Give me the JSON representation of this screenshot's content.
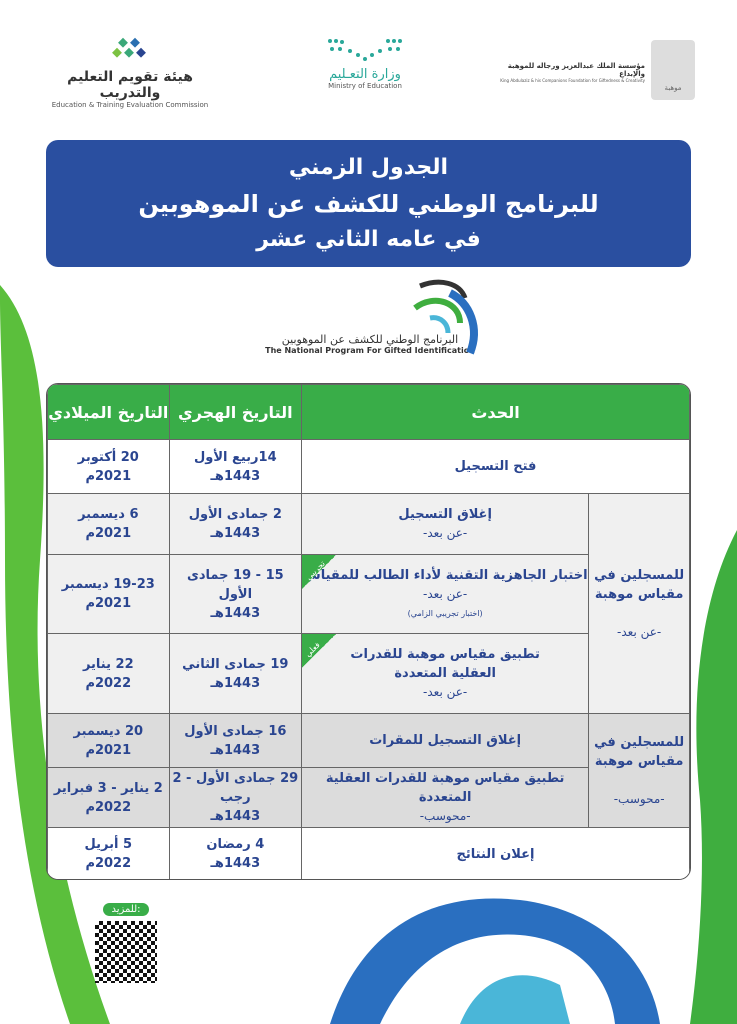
{
  "logos": {
    "etec": {
      "ar": "هيئة تقويم التعليم والتدريب",
      "en": "Education & Training Evaluation Commission"
    },
    "moe": {
      "ar": "وزارة التعـليم",
      "en": "Ministry of Education"
    },
    "mawhiba": {
      "ar": "مؤسسة الملك عبدالعزيز ورجاله للموهبة والإبداع",
      "en": "King Abdulaziz & his Companions Foundation for Giftedness & Creativity",
      "badge": "موهبة"
    }
  },
  "title": {
    "line1": "الجدول الزمني",
    "line2": "للبرنامج الوطني للكشف عن الموهوبين",
    "line3": "في عامه الثاني عشر"
  },
  "program": {
    "ar": "البرنامج الوطني للكشف عن الموهوبين",
    "en": "The National Program For Gifted Identification"
  },
  "table": {
    "headers": {
      "event": "الحدث",
      "hijri": "التاريخ الهجري",
      "gregorian": "التاريخ الميلادي"
    },
    "groups": [
      {
        "line1": "للمسجلين في",
        "line2": "مقياس موهبة",
        "mode": "-عن بعد-"
      },
      {
        "line1": "للمسجلين في",
        "line2": "مقياس موهبة",
        "mode": "-محوسب-"
      }
    ],
    "rows": [
      {
        "event": "فتح التسجيل",
        "hijri": "14ربيع الأول",
        "hijri_year": "1443هـ",
        "greg": "20 أكتوبر",
        "greg_year": "2021م"
      },
      {
        "event": "إغلاق التسجيل",
        "sub": "-عن بعد-",
        "hijri": "2 جمادى الأول",
        "hijri_year": "1443هـ",
        "greg": "6 ديسمبر",
        "greg_year": "2021م"
      },
      {
        "event": "اختبار الجاهزية التقنية لأداء الطالب للمقياس",
        "sub": "-عن بعد-",
        "note": "(اختبار تجريبي الزامي)",
        "ribbon": "تجريبي",
        "hijri": "15 - 19 جمادى الأول",
        "hijri_year": "1443هـ",
        "greg": "19-23 ديسمبر",
        "greg_year": "2021م"
      },
      {
        "event": "تطبيق مقياس موهبة للقدرات",
        "event2": "العقلية المتعددة",
        "sub": "-عن بعد-",
        "ribbon": "فعلي",
        "hijri": "19 جمادى الثاني",
        "hijri_year": "1443هـ",
        "greg": "22 يناير",
        "greg_year": "2022م"
      },
      {
        "event": "إغلاق التسجيل للمقرات",
        "hijri": "16 جمادى الأول",
        "hijri_year": "1443هـ",
        "greg": "20 ديسمبر",
        "greg_year": "2021م"
      },
      {
        "event": "تطبيق مقياس موهبة للقدرات العقلية المتعددة",
        "sub": "-محوسب-",
        "hijri": "29 جمادى الأول - 2 رجب",
        "hijri_year": "1443هـ",
        "greg": "2 يناير - 3 فبراير",
        "greg_year": "2022م"
      },
      {
        "event": "إعلان النتائج",
        "hijri": "4 رمضان",
        "hijri_year": "1443هـ",
        "greg": "5 أبريل",
        "greg_year": "2022م"
      }
    ]
  },
  "more": {
    "label": "للمزيد:"
  },
  "colors": {
    "blue": "#2a4fa0",
    "green": "#39ad48",
    "text": "#2a4590"
  }
}
